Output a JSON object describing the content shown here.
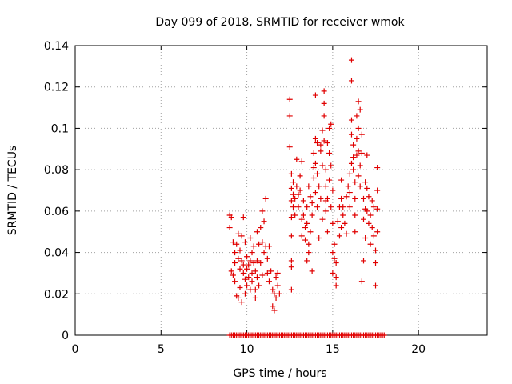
{
  "chart_data": {
    "type": "scatter",
    "title": "Day 099 of 2018, SRMTID for receiver wmok",
    "xlabel": "GPS time / hours",
    "ylabel": "SRMTID / TECUs",
    "xlim": [
      0,
      24
    ],
    "ylim": [
      0,
      0.14
    ],
    "xticks": [
      0,
      5,
      10,
      15,
      20
    ],
    "yticks": [
      0,
      0.02,
      0.04,
      0.06,
      0.08,
      0.1,
      0.12,
      0.14
    ],
    "xtick_labels": [
      "0",
      "5",
      "10",
      "15",
      "20"
    ],
    "ytick_labels": [
      "0",
      "0.02",
      "0.04",
      "0.06",
      "0.08",
      "0.1",
      "0.12",
      "0.14"
    ],
    "grid": true,
    "marker": "+",
    "color": "#e00000",
    "series": [
      {
        "values": [
          [
            9.0,
            0.058
          ],
          [
            9.0,
            0.052
          ],
          [
            9.1,
            0.057
          ],
          [
            9.1,
            0.031
          ],
          [
            9.2,
            0.029
          ],
          [
            9.2,
            0.045
          ],
          [
            9.3,
            0.035
          ],
          [
            9.3,
            0.026
          ],
          [
            9.3,
            0.04
          ],
          [
            9.4,
            0.044
          ],
          [
            9.4,
            0.019
          ],
          [
            9.5,
            0.049
          ],
          [
            9.5,
            0.037
          ],
          [
            9.5,
            0.018
          ],
          [
            9.6,
            0.032
          ],
          [
            9.6,
            0.041
          ],
          [
            9.6,
            0.023
          ],
          [
            9.7,
            0.036
          ],
          [
            9.7,
            0.048
          ],
          [
            9.7,
            0.016
          ],
          [
            9.8,
            0.034
          ],
          [
            9.8,
            0.03
          ],
          [
            9.8,
            0.057
          ],
          [
            9.9,
            0.027
          ],
          [
            9.9,
            0.045
          ],
          [
            9.9,
            0.02
          ],
          [
            10.0,
            0.032
          ],
          [
            10.0,
            0.038
          ],
          [
            10.0,
            0.024
          ],
          [
            10.1,
            0.034
          ],
          [
            10.1,
            0.028
          ],
          [
            10.2,
            0.036
          ],
          [
            10.2,
            0.022
          ],
          [
            10.2,
            0.047
          ],
          [
            10.3,
            0.03
          ],
          [
            10.3,
            0.04
          ],
          [
            10.3,
            0.026
          ],
          [
            10.4,
            0.043
          ],
          [
            10.4,
            0.035
          ],
          [
            10.5,
            0.018
          ],
          [
            10.5,
            0.022
          ],
          [
            10.5,
            0.031
          ],
          [
            10.6,
            0.05
          ],
          [
            10.6,
            0.028
          ],
          [
            10.6,
            0.036
          ],
          [
            10.7,
            0.024
          ],
          [
            10.7,
            0.044
          ],
          [
            10.8,
            0.035
          ],
          [
            10.8,
            0.052
          ],
          [
            10.9,
            0.045
          ],
          [
            10.9,
            0.029
          ],
          [
            10.9,
            0.06
          ],
          [
            11.0,
            0.055
          ],
          [
            11.0,
            0.04
          ],
          [
            11.1,
            0.066
          ],
          [
            11.1,
            0.043
          ],
          [
            11.2,
            0.03
          ],
          [
            11.2,
            0.037
          ],
          [
            11.3,
            0.043
          ],
          [
            11.3,
            0.026
          ],
          [
            11.4,
            0.031
          ],
          [
            11.5,
            0.022
          ],
          [
            11.5,
            0.014
          ],
          [
            11.6,
            0.02
          ],
          [
            11.6,
            0.012
          ],
          [
            11.7,
            0.028
          ],
          [
            11.7,
            0.018
          ],
          [
            11.8,
            0.03
          ],
          [
            11.8,
            0.024
          ],
          [
            11.9,
            0.02
          ],
          [
            12.5,
            0.114
          ],
          [
            12.5,
            0.106
          ],
          [
            12.5,
            0.091
          ],
          [
            12.6,
            0.078
          ],
          [
            12.6,
            0.071
          ],
          [
            12.6,
            0.065
          ],
          [
            12.6,
            0.057
          ],
          [
            12.6,
            0.048
          ],
          [
            12.6,
            0.036
          ],
          [
            12.6,
            0.033
          ],
          [
            12.6,
            0.022
          ],
          [
            12.7,
            0.068
          ],
          [
            12.7,
            0.062
          ],
          [
            12.7,
            0.074
          ],
          [
            12.8,
            0.066
          ],
          [
            12.8,
            0.058
          ],
          [
            12.9,
            0.085
          ],
          [
            12.9,
            0.072
          ],
          [
            13.0,
            0.068
          ],
          [
            13.0,
            0.062
          ],
          [
            13.1,
            0.077
          ],
          [
            13.1,
            0.07
          ],
          [
            13.2,
            0.056
          ],
          [
            13.2,
            0.084
          ],
          [
            13.2,
            0.048
          ],
          [
            13.3,
            0.065
          ],
          [
            13.3,
            0.058
          ],
          [
            13.4,
            0.052
          ],
          [
            13.4,
            0.046
          ],
          [
            13.5,
            0.062
          ],
          [
            13.5,
            0.054
          ],
          [
            13.5,
            0.036
          ],
          [
            13.6,
            0.072
          ],
          [
            13.6,
            0.044
          ],
          [
            13.6,
            0.04
          ],
          [
            13.7,
            0.067
          ],
          [
            13.7,
            0.05
          ],
          [
            13.8,
            0.058
          ],
          [
            13.8,
            0.064
          ],
          [
            13.8,
            0.031
          ],
          [
            13.9,
            0.088
          ],
          [
            13.9,
            0.081
          ],
          [
            13.9,
            0.076
          ],
          [
            14.0,
            0.116
          ],
          [
            14.0,
            0.095
          ],
          [
            14.0,
            0.083
          ],
          [
            14.0,
            0.069
          ],
          [
            14.1,
            0.093
          ],
          [
            14.1,
            0.078
          ],
          [
            14.1,
            0.062
          ],
          [
            14.2,
            0.072
          ],
          [
            14.2,
            0.047
          ],
          [
            14.3,
            0.089
          ],
          [
            14.3,
            0.066
          ],
          [
            14.3,
            0.092
          ],
          [
            14.4,
            0.099
          ],
          [
            14.4,
            0.082
          ],
          [
            14.4,
            0.056
          ],
          [
            14.5,
            0.118
          ],
          [
            14.5,
            0.112
          ],
          [
            14.5,
            0.106
          ],
          [
            14.5,
            0.094
          ],
          [
            14.6,
            0.08
          ],
          [
            14.6,
            0.072
          ],
          [
            14.6,
            0.065
          ],
          [
            14.6,
            0.06
          ],
          [
            14.7,
            0.093
          ],
          [
            14.7,
            0.066
          ],
          [
            14.7,
            0.05
          ],
          [
            14.8,
            0.1
          ],
          [
            14.8,
            0.088
          ],
          [
            14.8,
            0.075
          ],
          [
            14.9,
            0.102
          ],
          [
            14.9,
            0.082
          ],
          [
            14.9,
            0.062
          ],
          [
            15.0,
            0.07
          ],
          [
            15.0,
            0.054
          ],
          [
            15.0,
            0.04
          ],
          [
            15.0,
            0.03
          ],
          [
            15.1,
            0.044
          ],
          [
            15.1,
            0.037
          ],
          [
            15.2,
            0.035
          ],
          [
            15.2,
            0.028
          ],
          [
            15.2,
            0.024
          ],
          [
            15.3,
            0.055
          ],
          [
            15.4,
            0.062
          ],
          [
            15.4,
            0.048
          ],
          [
            15.5,
            0.075
          ],
          [
            15.5,
            0.066
          ],
          [
            15.5,
            0.052
          ],
          [
            15.6,
            0.058
          ],
          [
            15.6,
            0.062
          ],
          [
            15.7,
            0.054
          ],
          [
            15.8,
            0.049
          ],
          [
            15.8,
            0.067
          ],
          [
            15.9,
            0.072
          ],
          [
            16.0,
            0.078
          ],
          [
            16.0,
            0.069
          ],
          [
            16.0,
            0.062
          ],
          [
            16.1,
            0.133
          ],
          [
            16.1,
            0.123
          ],
          [
            16.1,
            0.104
          ],
          [
            16.1,
            0.097
          ],
          [
            16.1,
            0.083
          ],
          [
            16.2,
            0.092
          ],
          [
            16.2,
            0.086
          ],
          [
            16.2,
            0.08
          ],
          [
            16.3,
            0.074
          ],
          [
            16.3,
            0.066
          ],
          [
            16.3,
            0.058
          ],
          [
            16.3,
            0.05
          ],
          [
            16.4,
            0.106
          ],
          [
            16.4,
            0.095
          ],
          [
            16.4,
            0.087
          ],
          [
            16.5,
            0.113
          ],
          [
            16.5,
            0.1
          ],
          [
            16.5,
            0.089
          ],
          [
            16.5,
            0.077
          ],
          [
            16.6,
            0.109
          ],
          [
            16.6,
            0.082
          ],
          [
            16.6,
            0.072
          ],
          [
            16.7,
            0.097
          ],
          [
            16.7,
            0.088
          ],
          [
            16.7,
            0.026
          ],
          [
            16.8,
            0.066
          ],
          [
            16.8,
            0.056
          ],
          [
            16.8,
            0.036
          ],
          [
            16.9,
            0.074
          ],
          [
            16.9,
            0.061
          ],
          [
            16.9,
            0.047
          ],
          [
            17.0,
            0.087
          ],
          [
            17.0,
            0.071
          ],
          [
            17.0,
            0.06
          ],
          [
            17.1,
            0.067
          ],
          [
            17.1,
            0.054
          ],
          [
            17.2,
            0.058
          ],
          [
            17.2,
            0.044
          ],
          [
            17.3,
            0.065
          ],
          [
            17.3,
            0.052
          ],
          [
            17.4,
            0.062
          ],
          [
            17.4,
            0.048
          ],
          [
            17.5,
            0.041
          ],
          [
            17.5,
            0.035
          ],
          [
            17.5,
            0.024
          ],
          [
            17.6,
            0.081
          ],
          [
            17.6,
            0.07
          ],
          [
            17.6,
            0.061
          ],
          [
            17.6,
            0.05
          ]
        ]
      },
      {
        "values": [
          [
            9.0,
            0
          ],
          [
            9.1,
            0
          ],
          [
            9.2,
            0
          ],
          [
            9.3,
            0
          ],
          [
            9.4,
            0
          ],
          [
            9.5,
            0
          ],
          [
            9.6,
            0
          ],
          [
            9.7,
            0
          ],
          [
            9.8,
            0
          ],
          [
            9.9,
            0
          ],
          [
            10.0,
            0
          ],
          [
            10.1,
            0
          ],
          [
            10.2,
            0
          ],
          [
            10.3,
            0
          ],
          [
            10.4,
            0
          ],
          [
            10.5,
            0
          ],
          [
            10.6,
            0
          ],
          [
            10.7,
            0
          ],
          [
            10.8,
            0
          ],
          [
            10.9,
            0
          ],
          [
            11.0,
            0
          ],
          [
            11.1,
            0
          ],
          [
            11.2,
            0
          ],
          [
            11.3,
            0
          ],
          [
            11.4,
            0
          ],
          [
            11.5,
            0
          ],
          [
            11.6,
            0
          ],
          [
            11.7,
            0
          ],
          [
            11.8,
            0
          ],
          [
            11.9,
            0
          ],
          [
            12.0,
            0
          ],
          [
            12.1,
            0
          ],
          [
            12.2,
            0
          ],
          [
            12.3,
            0
          ],
          [
            12.4,
            0
          ],
          [
            12.5,
            0
          ],
          [
            12.6,
            0
          ],
          [
            12.7,
            0
          ],
          [
            12.8,
            0
          ],
          [
            12.9,
            0
          ],
          [
            13.0,
            0
          ],
          [
            13.1,
            0
          ],
          [
            13.2,
            0
          ],
          [
            13.3,
            0
          ],
          [
            13.4,
            0
          ],
          [
            13.5,
            0
          ],
          [
            13.6,
            0
          ],
          [
            13.7,
            0
          ],
          [
            13.8,
            0
          ],
          [
            13.9,
            0
          ],
          [
            14.0,
            0
          ],
          [
            14.1,
            0
          ],
          [
            14.2,
            0
          ],
          [
            14.3,
            0
          ],
          [
            14.4,
            0
          ],
          [
            14.5,
            0
          ],
          [
            14.6,
            0
          ],
          [
            14.7,
            0
          ],
          [
            14.8,
            0
          ],
          [
            14.9,
            0
          ],
          [
            15.0,
            0
          ],
          [
            15.1,
            0
          ],
          [
            15.2,
            0
          ],
          [
            15.3,
            0
          ],
          [
            15.4,
            0
          ],
          [
            15.5,
            0
          ],
          [
            15.6,
            0
          ],
          [
            15.7,
            0
          ],
          [
            15.8,
            0
          ],
          [
            15.9,
            0
          ],
          [
            16.0,
            0
          ],
          [
            16.1,
            0
          ],
          [
            16.2,
            0
          ],
          [
            16.3,
            0
          ],
          [
            16.4,
            0
          ],
          [
            16.5,
            0
          ],
          [
            16.6,
            0
          ],
          [
            16.7,
            0
          ],
          [
            16.8,
            0
          ],
          [
            16.9,
            0
          ],
          [
            17.0,
            0
          ],
          [
            17.1,
            0
          ],
          [
            17.2,
            0
          ],
          [
            17.3,
            0
          ],
          [
            17.4,
            0
          ],
          [
            17.5,
            0
          ],
          [
            17.6,
            0
          ],
          [
            17.7,
            0
          ],
          [
            17.8,
            0
          ],
          [
            17.9,
            0
          ],
          [
            18.0,
            0
          ]
        ]
      }
    ]
  }
}
